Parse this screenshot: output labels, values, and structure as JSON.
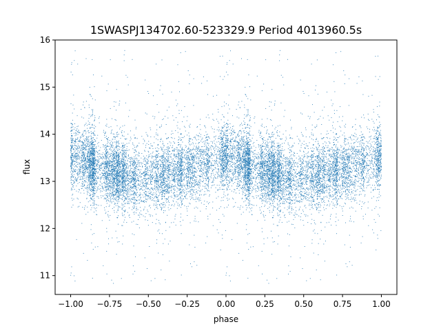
{
  "chart_data": {
    "type": "scatter",
    "title": "1SWASPJ134702.60-523329.9 Period 4013960.5s",
    "xlabel": "phase",
    "ylabel": "flux",
    "xlim": [
      -1.1,
      1.1
    ],
    "ylim": [
      10.6,
      16.0
    ],
    "x_ticks": [
      -1.0,
      -0.75,
      -0.5,
      -0.25,
      0.0,
      0.25,
      0.5,
      0.75,
      1.0
    ],
    "x_tick_labels": [
      "−1.00",
      "−0.75",
      "−0.50",
      "−0.25",
      "0.00",
      "0.25",
      "0.50",
      "0.75",
      "1.00"
    ],
    "y_ticks": [
      11,
      12,
      13,
      14,
      15,
      16
    ],
    "y_tick_labels": [
      "11",
      "12",
      "13",
      "14",
      "15",
      "16"
    ],
    "grid": false,
    "legend": "none",
    "point_color": "#1f77b4",
    "series": [
      {
        "x_range": [
          -1.0,
          1.0
        ],
        "phase_folded": true,
        "approx_points": 14000,
        "profile": [
          {
            "phase": 0.0,
            "median": 13.5,
            "spread": 0.35
          },
          {
            "phase": 0.25,
            "median": 13.2,
            "spread": 0.35
          },
          {
            "phase": 0.5,
            "median": 13.05,
            "spread": 0.35
          },
          {
            "phase": 0.75,
            "median": 13.25,
            "spread": 0.35
          },
          {
            "phase": 1.0,
            "median": 13.5,
            "spread": 0.35
          }
        ],
        "outlier_range": [
          10.8,
          15.8
        ]
      }
    ]
  }
}
